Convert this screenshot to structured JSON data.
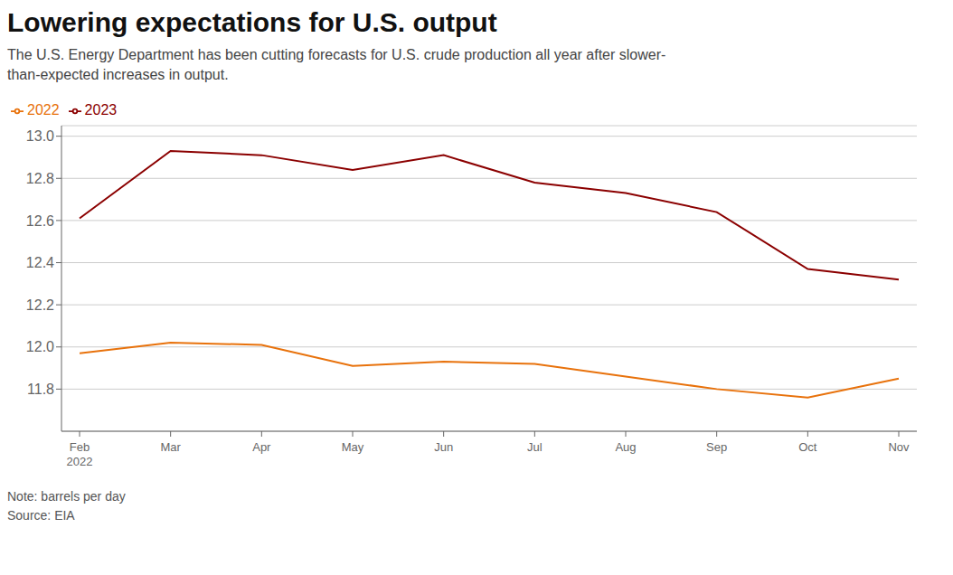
{
  "chart_data": {
    "type": "line",
    "title": "Lowering expectations for U.S. output",
    "subtitle": "The U.S. Energy Department has been cutting forecasts for U.S. crude production all year after slower-\nthan-expected increases in output.",
    "annotations": [
      "Note: barrels per day",
      "Source: EIA"
    ],
    "categories": [
      "Feb\n2022",
      "Mar",
      "Apr",
      "May",
      "Jun",
      "Jul",
      "Aug",
      "Sep",
      "Oct",
      "Nov"
    ],
    "series": [
      {
        "name": "2022",
        "color": "#E8720C",
        "values": [
          11.97,
          12.02,
          12.01,
          11.91,
          11.93,
          11.92,
          11.86,
          11.8,
          11.76,
          11.85
        ]
      },
      {
        "name": "2023",
        "color": "#8B0000",
        "values": [
          12.61,
          12.93,
          12.91,
          12.84,
          12.91,
          12.78,
          12.73,
          12.64,
          12.37,
          12.32
        ]
      }
    ],
    "ylim": [
      11.6,
      13.05
    ],
    "yticks": [
      11.8,
      {
        "value": 12,
        "label": "12.0"
      },
      12.2,
      12.4,
      12.6,
      12.8,
      {
        "value": 13,
        "label": "13.0"
      }
    ],
    "grid": true,
    "legend": "top"
  }
}
